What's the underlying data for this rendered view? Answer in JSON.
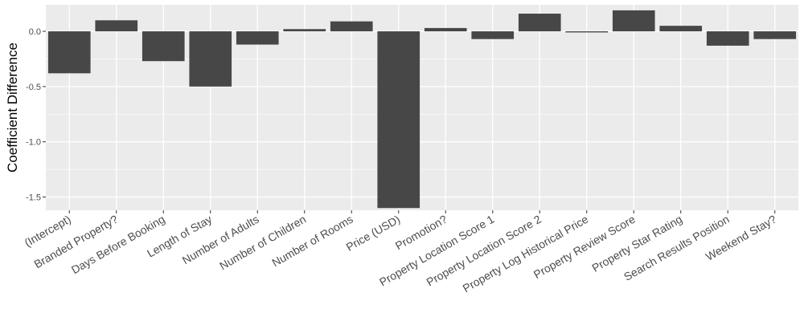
{
  "chart_data": {
    "type": "bar",
    "title": "",
    "xlabel": "",
    "ylabel": "Coefficient Difference",
    "categories": [
      "(Intercept)",
      "Branded Property?",
      "Days Before Booking",
      "Length of Stay",
      "Number of Adults",
      "Number of Children",
      "Number of Rooms",
      "Price (USD)",
      "Promotion?",
      "Property Location Score 1",
      "Property Location Score 2",
      "Property Log Historical Price",
      "Property Review Score",
      "Property Star Rating",
      "Search Results Position",
      "Weekend Stay?"
    ],
    "values": [
      -0.38,
      0.1,
      -0.27,
      -0.5,
      -0.12,
      0.02,
      0.09,
      -1.6,
      0.03,
      -0.07,
      0.16,
      -0.01,
      0.19,
      0.05,
      -0.13,
      -0.07
    ],
    "ylim": [
      -1.62,
      0.24
    ],
    "yticks": [
      0.0,
      -0.5,
      -1.0,
      -1.5
    ],
    "ytick_labels": [
      "0.0",
      "-0.5",
      "-1.0",
      "-1.5"
    ],
    "grid": true,
    "colors": {
      "bar": "#474747",
      "panel": "#ebebeb",
      "grid": "#ffffff"
    }
  }
}
